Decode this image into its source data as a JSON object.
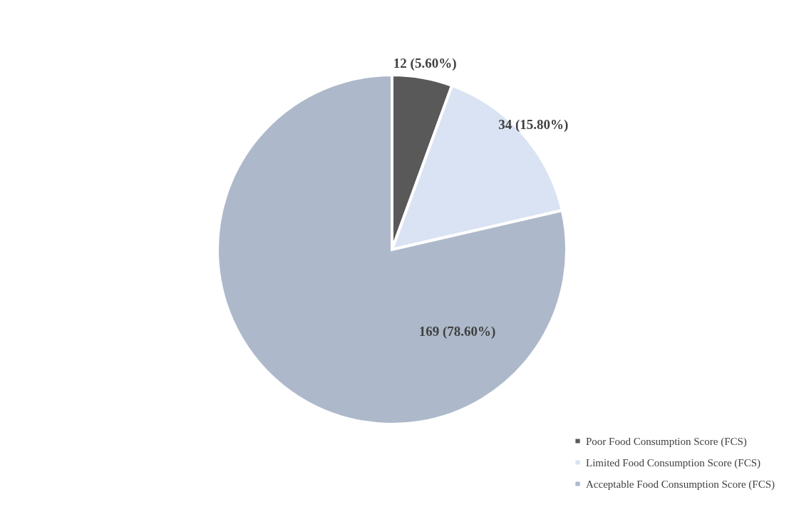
{
  "chart_data": {
    "type": "pie",
    "categories": [
      "Poor Food Consumption Score (FCS)",
      "Limited Food Consumption Score (FCS)",
      "Acceptable Food Consumption Score (FCS)"
    ],
    "values": [
      12,
      34,
      169
    ],
    "colors": [
      "#595959",
      "#dae3f3",
      "#adb9ca"
    ],
    "value_labels": [
      "12 (5.60%)",
      "34 (15.80%)",
      "169 (78.60%)"
    ],
    "legend": "bottom right"
  }
}
